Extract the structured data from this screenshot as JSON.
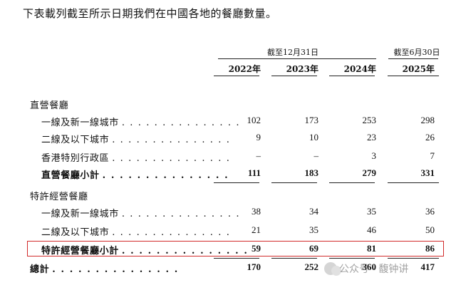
{
  "intro": "下表載列截至所示日期我們在中國各地的餐廳數量。",
  "headers": {
    "group1": "截至12月31日",
    "group2": "截至6月30日",
    "years": [
      "2022年",
      "2023年",
      "2024年",
      "2025年"
    ]
  },
  "rows": [
    {
      "type": "section",
      "label": "直營餐廳"
    },
    {
      "type": "item",
      "label": "一線及新一線城市",
      "values": [
        "102",
        "173",
        "253",
        "298"
      ]
    },
    {
      "type": "item",
      "label": "二線及以下城市",
      "values": [
        "9",
        "10",
        "23",
        "26"
      ]
    },
    {
      "type": "item",
      "label": "香港特別行政區",
      "values": [
        "–",
        "–",
        "3",
        "7"
      ]
    },
    {
      "type": "sub",
      "label": "直營餐廳小計",
      "values": [
        "111",
        "183",
        "279",
        "331"
      ]
    },
    {
      "type": "section",
      "label": "特許經營餐廳"
    },
    {
      "type": "item",
      "label": "一線及新一線城市",
      "values": [
        "38",
        "34",
        "35",
        "36"
      ]
    },
    {
      "type": "item",
      "label": "二線及以下城市",
      "values": [
        "21",
        "35",
        "46",
        "50"
      ]
    },
    {
      "type": "sub",
      "label": "特許經營餐廳小計",
      "values": [
        "59",
        "69",
        "81",
        "86"
      ]
    },
    {
      "type": "total",
      "label": "總計",
      "values": [
        "170",
        "252",
        "360",
        "417"
      ]
    }
  ],
  "dots": ". . . . . . . . . . . . . . .",
  "watermark": "公众号 · 馥钟讲"
}
